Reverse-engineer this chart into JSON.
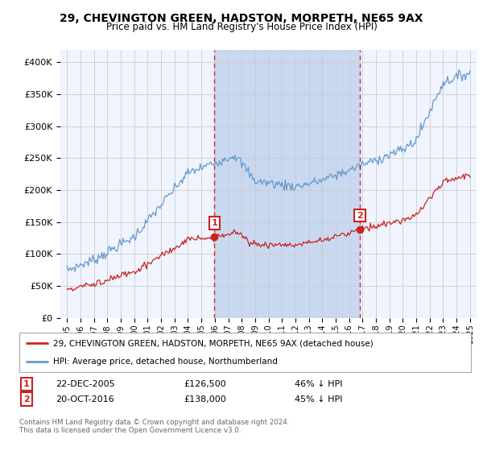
{
  "title": "29, CHEVINGTON GREEN, HADSTON, MORPETH, NE65 9AX",
  "subtitle": "Price paid vs. HM Land Registry's House Price Index (HPI)",
  "background_color": "#ffffff",
  "plot_bg_color": "#f0f4ff",
  "grid_color": "#cccccc",
  "sale1_date": "22-DEC-2005",
  "sale1_price": 126500,
  "sale1_label": "46% ↓ HPI",
  "sale1_x": 2005.97,
  "sale2_date": "20-OCT-2016",
  "sale2_price": 138000,
  "sale2_label": "45% ↓ HPI",
  "sale2_x": 2016.8,
  "hpi_line_color": "#6699cc",
  "price_line_color": "#cc2222",
  "shade_color": "#c8d8f0",
  "vline_color": "#cc3333",
  "legend_label_price": "29, CHEVINGTON GREEN, HADSTON, MORPETH, NE65 9AX (detached house)",
  "legend_label_hpi": "HPI: Average price, detached house, Northumberland",
  "footer": "Contains HM Land Registry data © Crown copyright and database right 2024.\nThis data is licensed under the Open Government Licence v3.0.",
  "ylim": [
    0,
    420000
  ],
  "yticks": [
    0,
    50000,
    100000,
    150000,
    200000,
    250000,
    300000,
    350000,
    400000
  ],
  "ytick_labels": [
    "£0",
    "£50K",
    "£100K",
    "£150K",
    "£200K",
    "£250K",
    "£300K",
    "£350K",
    "£400K"
  ],
  "xlim": [
    1994.5,
    2025.5
  ],
  "xticks": [
    1995,
    1996,
    1997,
    1998,
    1999,
    2000,
    2001,
    2002,
    2003,
    2004,
    2005,
    2006,
    2007,
    2008,
    2009,
    2010,
    2011,
    2012,
    2013,
    2014,
    2015,
    2016,
    2017,
    2018,
    2019,
    2020,
    2021,
    2022,
    2023,
    2024,
    2025
  ]
}
